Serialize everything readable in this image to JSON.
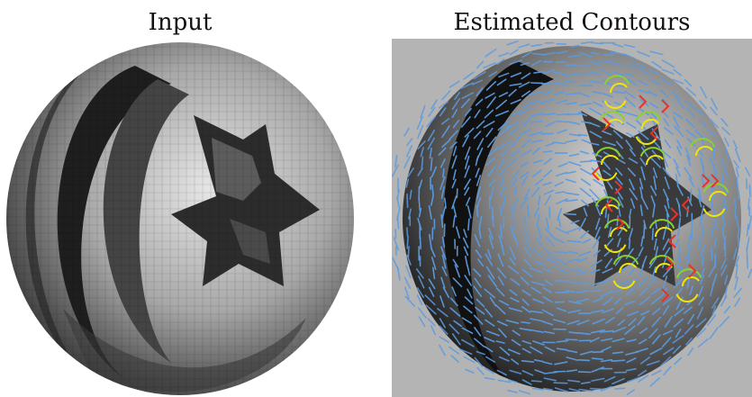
{
  "figure": {
    "left_panel": {
      "title": "Input",
      "content": "pixelated grayscale sphere with embossed crescent and star"
    },
    "right_panel": {
      "title": "Estimated Contours",
      "background": "#b4b4b4"
    }
  },
  "colors": {
    "flow_lines": "#5b9be0",
    "contour_green": "#8bd12e",
    "contour_yellow": "#f2e600",
    "contour_red": "#e8322a"
  }
}
